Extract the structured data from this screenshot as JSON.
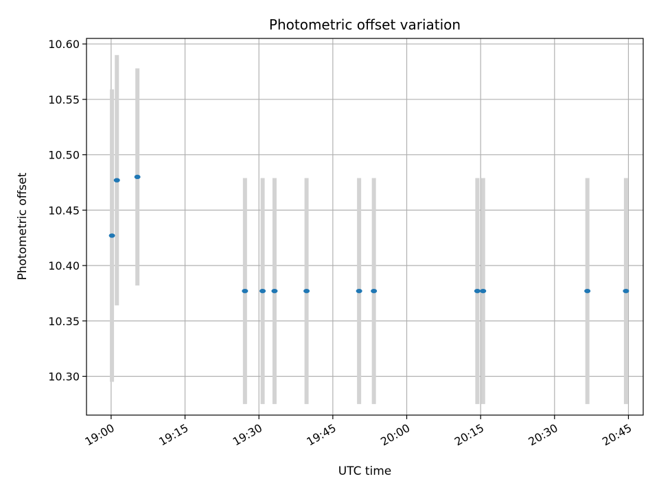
{
  "chart_data": {
    "type": "scatter",
    "title": "Photometric offset variation",
    "xlabel": "UTC time",
    "ylabel": "Photometric offset",
    "grid": true,
    "xlim": [
      "18:55",
      "20:48"
    ],
    "ylim": [
      10.265,
      10.605
    ],
    "x_ticks": [
      "19:00",
      "19:15",
      "19:30",
      "19:45",
      "20:00",
      "20:15",
      "20:30",
      "20:45"
    ],
    "y_ticks": [
      "10.30",
      "10.35",
      "10.40",
      "10.45",
      "10.50",
      "10.55",
      "10.60"
    ],
    "colors": {
      "points": "#1f77b4",
      "errorbars": "#d3d3d3",
      "grid": "#b0b0b0"
    },
    "points": [
      {
        "x": "19:00:10",
        "y": 10.427,
        "yerr": 0.132
      },
      {
        "x": "19:01:10",
        "y": 10.477,
        "yerr": 0.113
      },
      {
        "x": "19:05:20",
        "y": 10.48,
        "yerr": 0.098
      },
      {
        "x": "19:27:10",
        "y": 10.377,
        "yerr": 0.102
      },
      {
        "x": "19:30:45",
        "y": 10.377,
        "yerr": 0.102
      },
      {
        "x": "19:33:10",
        "y": 10.377,
        "yerr": 0.102
      },
      {
        "x": "19:39:40",
        "y": 10.377,
        "yerr": 0.102
      },
      {
        "x": "19:50:20",
        "y": 10.377,
        "yerr": 0.102
      },
      {
        "x": "19:53:20",
        "y": 10.377,
        "yerr": 0.102
      },
      {
        "x": "20:14:20",
        "y": 10.377,
        "yerr": 0.102
      },
      {
        "x": "20:15:30",
        "y": 10.377,
        "yerr": 0.102
      },
      {
        "x": "20:36:40",
        "y": 10.377,
        "yerr": 0.102
      },
      {
        "x": "20:44:30",
        "y": 10.377,
        "yerr": 0.102
      }
    ]
  }
}
